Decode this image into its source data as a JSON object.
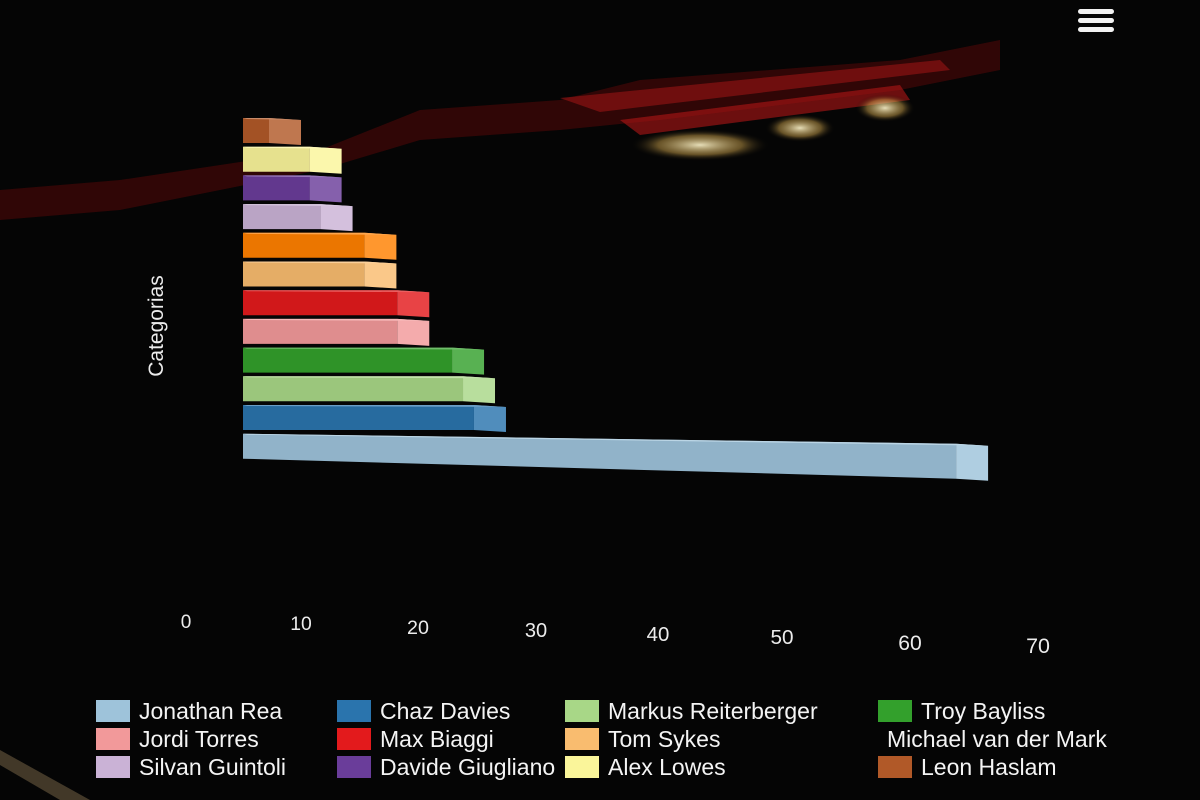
{
  "chart_data": {
    "type": "bar",
    "orientation": "horizontal",
    "three_d": true,
    "xlabel": "",
    "ylabel": "Categorias",
    "xlim": [
      0,
      70
    ],
    "x_ticks": [
      "0",
      "10",
      "20",
      "30",
      "40",
      "50",
      "60",
      "70"
    ],
    "grid": false,
    "legend_position": "bottom",
    "series": [
      {
        "name": "Jonathan Rea",
        "value": 68,
        "color": "#9ec3da"
      },
      {
        "name": "Chaz Davies",
        "value": 24,
        "color": "#2a74ad"
      },
      {
        "name": "Markus Reiterberger",
        "value": 23,
        "color": "#a8d787"
      },
      {
        "name": "Troy Bayliss",
        "value": 22,
        "color": "#33a02c"
      },
      {
        "name": "Jordi Torres",
        "value": 17,
        "color": "#f2999a"
      },
      {
        "name": "Max Biaggi",
        "value": 17,
        "color": "#e31a1c"
      },
      {
        "name": "Tom Sykes",
        "value": 14,
        "color": "#f9bc6f"
      },
      {
        "name": "Michael van der Mark",
        "value": 14,
        "color": "#ff8000"
      },
      {
        "name": "Silvan Guintoli",
        "value": 10,
        "color": "#cab2d6"
      },
      {
        "name": "Davide Giugliano",
        "value": 9,
        "color": "#6a3d9a"
      },
      {
        "name": "Alex Lowes",
        "value": 9,
        "color": "#faf59a"
      },
      {
        "name": "Leon Haslam",
        "value": 5,
        "color": "#b15928"
      }
    ]
  }
}
